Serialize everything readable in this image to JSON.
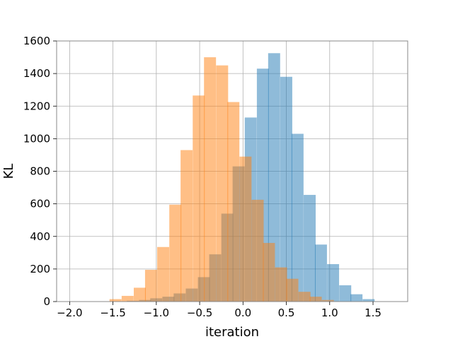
{
  "chart_data": {
    "type": "histogram",
    "xlabel": "iteration",
    "ylabel": "KL",
    "xlim": [
      -2.15,
      1.9
    ],
    "ylim": [
      0,
      1600
    ],
    "xticks": [
      -2.0,
      -1.5,
      -1.0,
      -0.5,
      0.0,
      0.5,
      1.0,
      1.5
    ],
    "xtick_labels": [
      "−2.0",
      "−1.5",
      "−1.0",
      "−0.5",
      "0.0",
      "0.5",
      "1.0",
      "1.5"
    ],
    "yticks": [
      0,
      200,
      400,
      600,
      800,
      1000,
      1200,
      1400,
      1600
    ],
    "ytick_labels": [
      "0",
      "200",
      "400",
      "600",
      "800",
      "1000",
      "1200",
      "1400",
      "1600"
    ],
    "grid": true,
    "bin_width": 0.136,
    "series": [
      {
        "color": "#1f77b4",
        "alpha": 0.5,
        "bins_start": [
          -1.34,
          -1.2,
          -1.07,
          -0.93,
          -0.8,
          -0.66,
          -0.52,
          -0.39,
          -0.25,
          -0.12,
          0.02,
          0.16,
          0.29,
          0.43,
          0.56,
          0.7,
          0.83,
          0.97,
          1.11,
          1.24,
          1.38
        ],
        "counts": [
          5,
          10,
          20,
          30,
          50,
          80,
          150,
          290,
          540,
          830,
          1130,
          1430,
          1525,
          1380,
          1030,
          655,
          350,
          230,
          100,
          45,
          15
        ]
      },
      {
        "color": "#ff7f0e",
        "alpha": 0.5,
        "bins_start": [
          -1.54,
          -1.4,
          -1.26,
          -1.13,
          -0.99,
          -0.85,
          -0.72,
          -0.58,
          -0.45,
          -0.31,
          -0.18,
          -0.04,
          0.1,
          0.23,
          0.37,
          0.5,
          0.64,
          0.77,
          0.91
        ],
        "counts": [
          15,
          35,
          85,
          195,
          335,
          595,
          930,
          1265,
          1500,
          1450,
          1225,
          890,
          625,
          360,
          210,
          140,
          60,
          30,
          10
        ]
      }
    ]
  }
}
